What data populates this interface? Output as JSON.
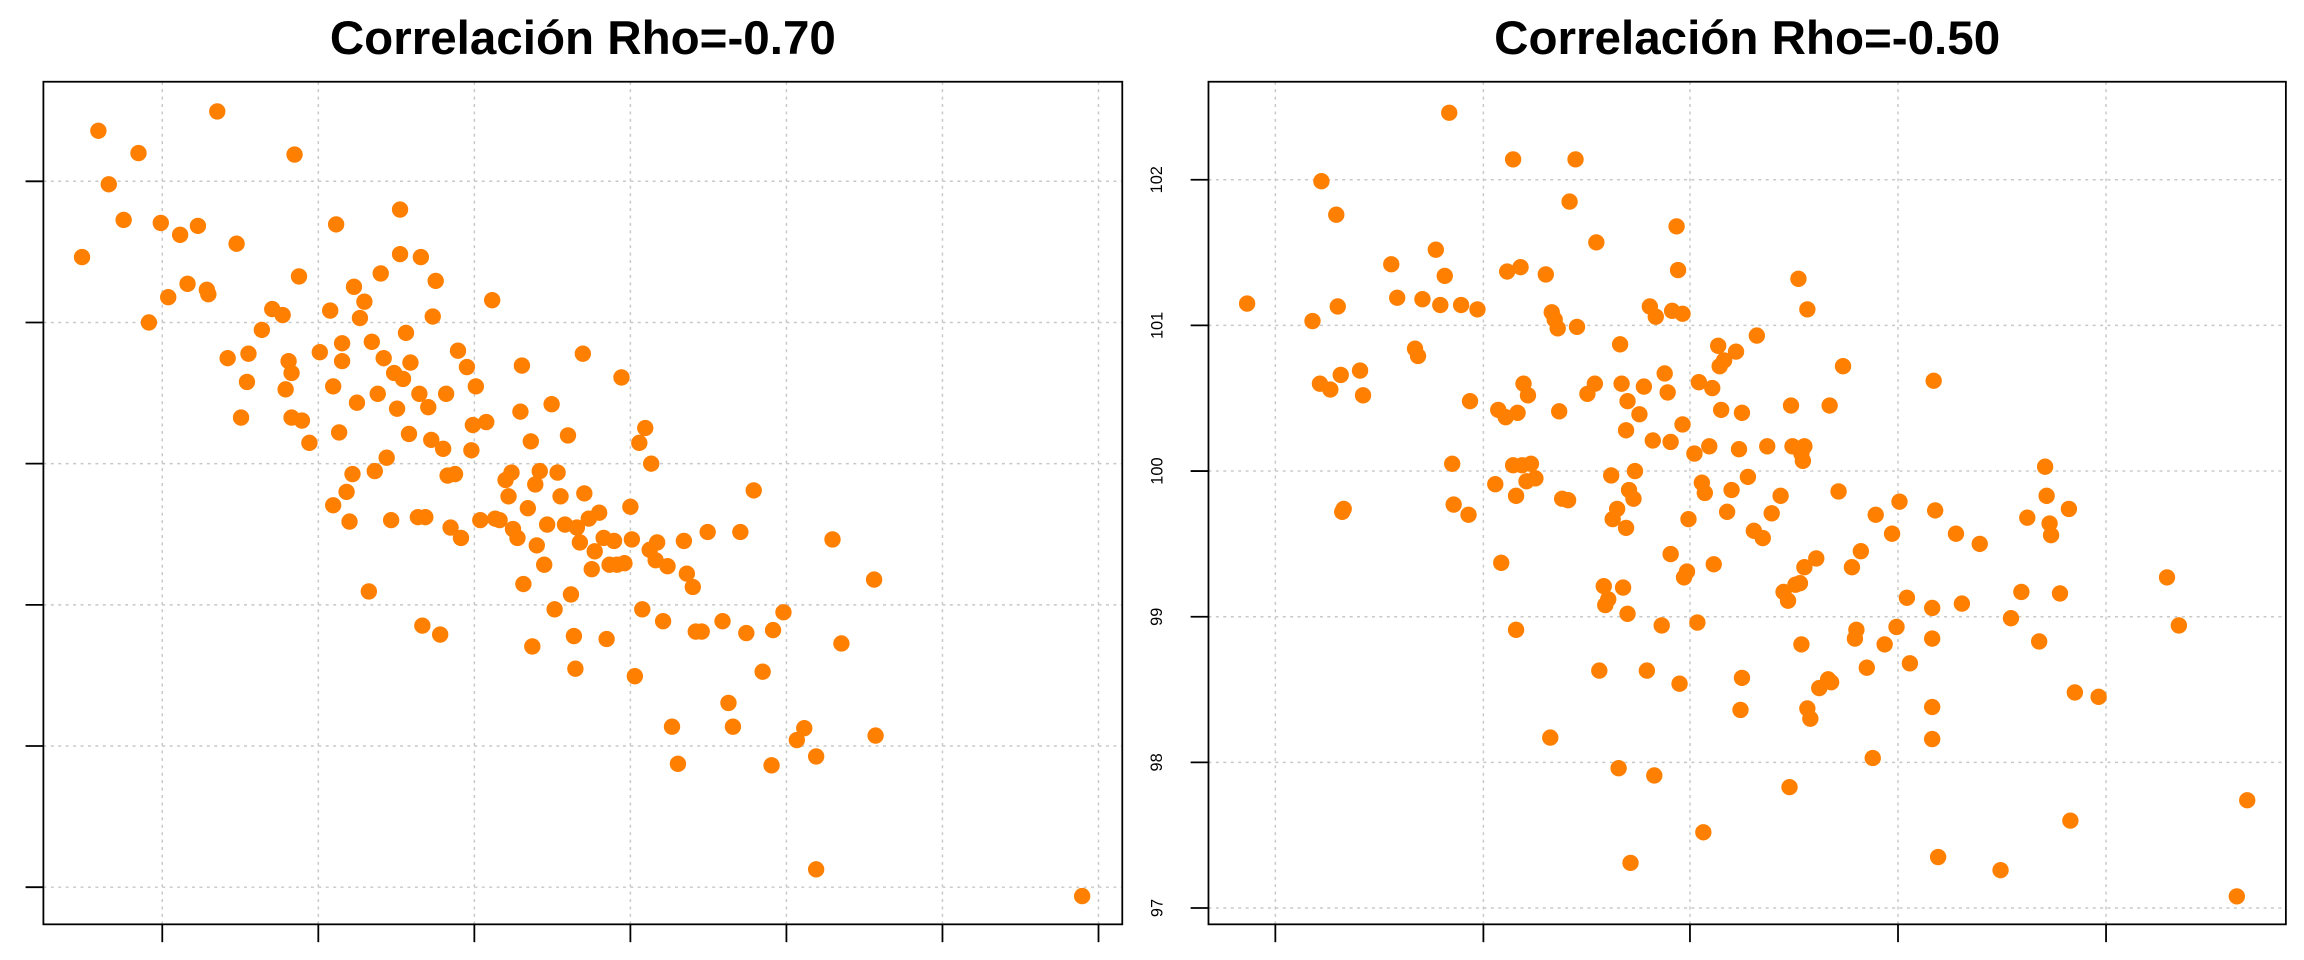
{
  "chart_data": [
    {
      "type": "scatter",
      "title": "Correlación Rho=-0.70",
      "color": "#ff7f00",
      "grid": true,
      "show_x_tick_labels": false,
      "show_y_tick_labels": false,
      "xlim": [
        -80,
        646
      ],
      "ylim": [
        -25,
        542
      ],
      "xticks": [
        0,
        105,
        210,
        315,
        420,
        525,
        630
      ],
      "yticks": [
        0,
        95,
        190,
        285,
        380,
        475
      ],
      "x": [
        -54,
        -43,
        -36,
        -26,
        -16,
        -9,
        -1,
        4,
        12,
        17,
        24,
        30,
        31,
        37,
        44,
        50,
        53,
        57,
        58,
        67,
        74,
        81,
        83,
        85,
        87,
        89,
        87,
        92,
        94,
        99,
        106,
        113,
        115,
        115,
        117,
        119,
        121,
        121,
        124,
        126,
        128,
        129,
        131,
        133,
        136,
        139,
        141,
        143,
        145,
        147,
        149,
        151,
        154,
        156,
        158,
        160,
        160,
        162,
        164,
        166,
        167,
        172,
        173,
        174,
        175,
        177,
        179,
        181,
        182,
        184,
        187,
        189,
        191,
        192,
        194,
        197,
        199,
        201,
        205,
        208,
        209,
        211,
        214,
        218,
        222,
        224,
        227,
        231,
        233,
        235,
        236,
        239,
        241,
        242,
        243,
        246,
        248,
        249,
        251,
        252,
        254,
        257,
        259,
        262,
        264,
        266,
        268,
        271,
        273,
        275,
        277,
        278,
        279,
        281,
        283,
        284,
        287,
        289,
        291,
        294,
        297,
        299,
        301,
        304,
        306,
        309,
        311,
        315,
        316,
        318,
        321,
        323,
        325,
        328,
        329,
        332,
        333,
        337,
        340,
        343,
        347,
        351,
        353,
        357,
        359,
        363,
        367,
        377,
        381,
        384,
        389,
        393,
        398,
        404,
        410,
        411,
        418,
        427,
        432,
        440,
        440,
        451,
        457,
        479,
        480,
        619
      ],
      "values": [
        424,
        509,
        473,
        449,
        494,
        380,
        447,
        397,
        439,
        406,
        445,
        402,
        399,
        522,
        356,
        433,
        316,
        340,
        359,
        375,
        389,
        385,
        335,
        354,
        346,
        493,
        316,
        411,
        314,
        299,
        360,
        388,
        337,
        257,
        446,
        306,
        354,
        366,
        266,
        246,
        278,
        404,
        326,
        383,
        394,
        199,
        367,
        280,
        332,
        413,
        356,
        289,
        247,
        346,
        322,
        456,
        426,
        342,
        373,
        305,
        353,
        249,
        332,
        424,
        176,
        249,
        323,
        301,
        384,
        408,
        170,
        295,
        332,
        277,
        242,
        278,
        361,
        235,
        350,
        294,
        311,
        337,
        247,
        313,
        395,
        248,
        247,
        274,
        263,
        279,
        241,
        235,
        320,
        351,
        204,
        255,
        300,
        162,
        271,
        230,
        280,
        217,
        244,
        325,
        187,
        279,
        263,
        244,
        304,
        197,
        169,
        147,
        242,
        232,
        359,
        265,
        248,
        214,
        226,
        252,
        235,
        167,
        217,
        233,
        217,
        343,
        218,
        256,
        234,
        142,
        299,
        187,
        309,
        227,
        285,
        220,
        232,
        179,
        216,
        108,
        83,
        233,
        211,
        202,
        172,
        172,
        239,
        179,
        124,
        108,
        239,
        171,
        267,
        145,
        82,
        173,
        185,
        99,
        107,
        88,
        12,
        234,
        164,
        207,
        102,
        -6
      ]
    },
    {
      "type": "scatter",
      "title": "Correlación Rho=-0.50",
      "color": "#ff7f00",
      "grid": true,
      "show_x_tick_labels": false,
      "show_y_tick_labels": true,
      "xlim": [
        -45,
        680
      ],
      "ylim": [
        96.888,
        102.673
      ],
      "xticks": [
        0,
        140,
        279,
        419,
        559
      ],
      "yticks": [
        97,
        98,
        99,
        100,
        101,
        102
      ],
      "x": [
        -19,
        25,
        30,
        31,
        37,
        41,
        42,
        44,
        45,
        46,
        57,
        59,
        78,
        82,
        94,
        96,
        99,
        108,
        111,
        114,
        117,
        119,
        120,
        125,
        130,
        131,
        136,
        148,
        150,
        152,
        155,
        156,
        160,
        160,
        162,
        162,
        163,
        165,
        166,
        167,
        169,
        170,
        172,
        175,
        182,
        185,
        186,
        188,
        190,
        191,
        193,
        197,
        202,
        198,
        203,
        210,
        215,
        216,
        218,
        221,
        222,
        224,
        226,
        227,
        230,
        231,
        232,
        233,
        234,
        236,
        236,
        237,
        237,
        238,
        239,
        241,
        242,
        245,
        248,
        250,
        252,
        254,
        255,
        256,
        260,
        262,
        264,
        266,
        266,
        267,
        270,
        271,
        272,
        274,
        274,
        275,
        277,
        278,
        282,
        284,
        285,
        287,
        288,
        289,
        292,
        294,
        295,
        298,
        299,
        300,
        302,
        304,
        307,
        310,
        312,
        313,
        314,
        314,
        318,
        324,
        322,
        328,
        331,
        334,
        340,
        342,
        345,
        346,
        347,
        348,
        350,
        352,
        353,
        354,
        354,
        355,
        356,
        356,
        358,
        358,
        360,
        364,
        366,
        372,
        374,
        373,
        379,
        382,
        388,
        390,
        391,
        394,
        398,
        402,
        404,
        410,
        415,
        418,
        420,
        425,
        427,
        442,
        442,
        442,
        442,
        443,
        444,
        446,
        458,
        462,
        474,
        488,
        495,
        502,
        506,
        514,
        518,
        519,
        521,
        522,
        528,
        534,
        535,
        538,
        554,
        600,
        608,
        647,
        654
      ],
      "values": [
        101.15,
        101.03,
        100.6,
        101.99,
        100.56,
        101.76,
        101.13,
        100.66,
        99.72,
        99.74,
        100.69,
        100.52,
        101.42,
        101.19,
        100.84,
        100.79,
        101.18,
        101.52,
        101.14,
        101.34,
        102.46,
        100.05,
        99.77,
        101.14,
        99.7,
        100.48,
        101.11,
        99.91,
        100.42,
        99.37,
        100.37,
        101.37,
        102.14,
        100.04,
        99.83,
        98.91,
        100.4,
        101.4,
        100.04,
        100.6,
        99.93,
        100.52,
        100.05,
        99.95,
        101.35,
        98.17,
        101.09,
        101.04,
        100.98,
        100.41,
        99.81,
        99.8,
        102.14,
        101.85,
        100.99,
        100.53,
        100.6,
        101.57,
        98.63,
        99.21,
        99.08,
        99.12,
        99.97,
        99.67,
        99.74,
        97.96,
        100.87,
        100.6,
        99.2,
        100.28,
        99.61,
        100.48,
        99.02,
        99.87,
        97.31,
        99.81,
        100.0,
        100.39,
        100.58,
        98.63,
        101.13,
        100.21,
        97.91,
        101.06,
        98.94,
        100.67,
        100.54,
        99.43,
        100.2,
        101.1,
        101.68,
        101.38,
        98.54,
        101.08,
        100.32,
        99.27,
        99.31,
        99.67,
        100.12,
        98.96,
        100.61,
        99.92,
        97.52,
        99.85,
        100.17,
        100.57,
        99.36,
        100.86,
        100.72,
        100.42,
        100.76,
        99.72,
        99.87,
        100.82,
        100.15,
        98.36,
        98.58,
        100.4,
        99.96,
        100.93,
        99.59,
        99.54,
        100.17,
        99.71,
        99.83,
        99.17,
        99.11,
        97.83,
        100.45,
        100.17,
        99.22,
        101.32,
        99.23,
        98.81,
        100.12,
        100.07,
        100.17,
        99.34,
        101.11,
        98.37,
        98.3,
        99.4,
        98.51,
        98.57,
        98.55,
        100.45,
        99.86,
        100.72,
        99.34,
        98.85,
        98.91,
        99.45,
        98.65,
        98.03,
        99.7,
        98.81,
        99.57,
        98.93,
        99.79,
        99.13,
        98.68,
        99.06,
        98.85,
        98.38,
        98.16,
        100.62,
        99.73,
        97.35,
        99.57,
        99.09,
        99.5,
        97.26,
        98.99,
        99.17,
        99.68,
        98.83,
        100.03,
        99.83,
        99.64,
        99.56,
        99.16,
        99.74,
        97.6,
        98.48,
        98.45,
        99.27,
        98.94,
        97.08,
        97.74
      ]
    }
  ]
}
